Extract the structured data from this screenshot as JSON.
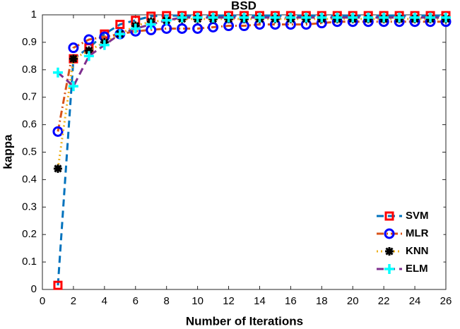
{
  "chart_data": {
    "type": "line",
    "title": "BSD",
    "xlabel": "Number of Iterations",
    "ylabel": "kappa",
    "x": [
      1,
      2,
      3,
      4,
      5,
      6,
      7,
      8,
      9,
      10,
      11,
      12,
      13,
      14,
      15,
      16,
      17,
      18,
      19,
      20,
      21,
      22,
      23,
      24,
      25,
      26
    ],
    "xlim": [
      0,
      26
    ],
    "xticks": [
      0,
      2,
      4,
      6,
      8,
      10,
      12,
      14,
      16,
      18,
      20,
      22,
      24,
      26
    ],
    "ylim": [
      0,
      1
    ],
    "yticks": [
      0,
      0.1,
      0.2,
      0.3,
      0.4,
      0.5,
      0.6,
      0.7,
      0.8,
      0.9,
      1
    ],
    "grid": false,
    "legend": "lower right",
    "series": [
      {
        "name": "SVM",
        "color": "#0072bd",
        "marker_color": "#ff0000",
        "marker": "square",
        "dash": "dashed",
        "values": [
          0.015,
          0.84,
          0.88,
          0.93,
          0.965,
          0.98,
          0.995,
          0.997,
          0.997,
          0.997,
          0.997,
          0.997,
          0.997,
          0.997,
          0.997,
          0.997,
          0.997,
          0.997,
          0.997,
          0.997,
          0.997,
          0.997,
          0.997,
          0.997,
          0.997,
          0.997
        ]
      },
      {
        "name": "MLR",
        "color": "#d95319",
        "marker_color": "#0000ff",
        "marker": "circle",
        "dash": "dashdot",
        "values": [
          0.575,
          0.88,
          0.91,
          0.92,
          0.93,
          0.94,
          0.945,
          0.95,
          0.95,
          0.95,
          0.955,
          0.96,
          0.96,
          0.965,
          0.965,
          0.965,
          0.965,
          0.97,
          0.975,
          0.975,
          0.975,
          0.975,
          0.975,
          0.975,
          0.975,
          0.975
        ]
      },
      {
        "name": "KNN",
        "color": "#edb120",
        "marker_color": "#000000",
        "marker": "star",
        "dash": "dotted",
        "values": [
          0.44,
          0.84,
          0.87,
          0.9,
          0.93,
          0.96,
          0.975,
          0.98,
          0.985,
          0.985,
          0.985,
          0.985,
          0.985,
          0.985,
          0.985,
          0.985,
          0.985,
          0.985,
          0.985,
          0.985,
          0.985,
          0.985,
          0.985,
          0.985,
          0.985,
          0.985
        ]
      },
      {
        "name": "ELM",
        "color": "#7e2f8e",
        "marker_color": "#00ffff",
        "marker": "plus",
        "dash": "dashed",
        "values": [
          0.79,
          0.74,
          0.85,
          0.89,
          0.93,
          0.95,
          0.965,
          0.98,
          0.99,
          0.99,
          0.99,
          0.99,
          0.99,
          0.99,
          0.99,
          0.99,
          0.99,
          0.99,
          0.99,
          0.99,
          0.99,
          0.99,
          0.99,
          0.99,
          0.99,
          0.99
        ]
      }
    ]
  }
}
